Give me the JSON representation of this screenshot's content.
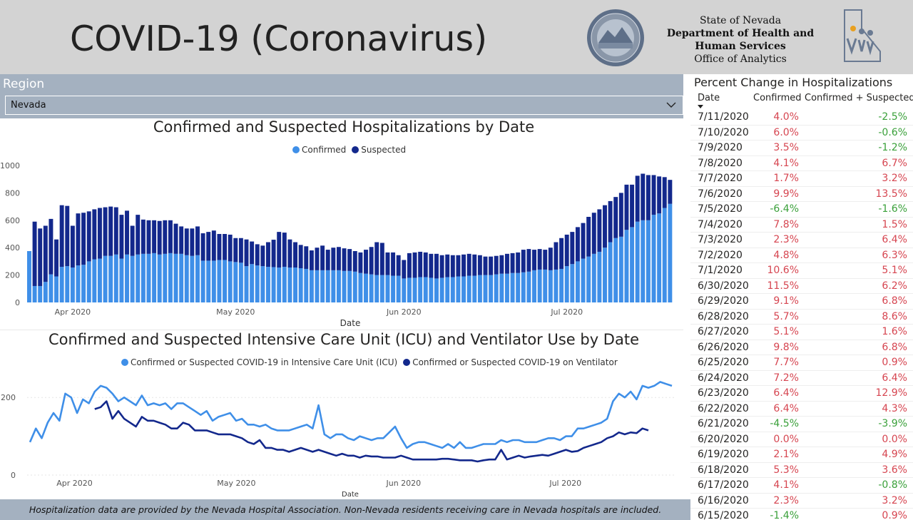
{
  "header": {
    "title": "COVID-19 (Coronavirus)",
    "agency_line1": "State of Nevada",
    "agency_line2": "Department of Health and",
    "agency_line3": "Human Services",
    "agency_line4": "Office of Analytics",
    "seal_icon": "nevada-state-seal-icon",
    "logo_icon": "dhhs-logo-icon"
  },
  "filter": {
    "label": "Region",
    "value": "Nevada"
  },
  "colors": {
    "confirmed": "#3f8fe8",
    "suspected": "#13288c",
    "positive_change": "#d64550",
    "negative_change": "#3aa03a",
    "panel": "#a4b1c0",
    "header": "#d3d3d3"
  },
  "hosp_chart": {
    "title": "Confirmed and Suspected Hospitalizations by Date",
    "legend_confirmed": "Confirmed",
    "legend_suspected": "Suspected",
    "xlabel": "Date",
    "y_ticks": [
      "0",
      "200",
      "400",
      "600",
      "800",
      "1000"
    ],
    "x_ticks": [
      "Apr 2020",
      "May 2020",
      "Jun 2020",
      "Jul 2020"
    ]
  },
  "icu_chart": {
    "title": "Confirmed and Suspected Intensive Care Unit (ICU) and Ventilator Use by Date",
    "legend_icu": "Confirmed or Suspected COVID-19 in Intensive Care Unit (ICU)",
    "legend_vent": "Confirmed or Suspected COVID-19 on Ventilator",
    "xlabel": "Date",
    "y_ticks": [
      "0",
      "200"
    ],
    "x_ticks": [
      "Apr 2020",
      "May 2020",
      "Jun 2020",
      "Jul 2020"
    ]
  },
  "chart_data": [
    {
      "type": "bar",
      "title": "Confirmed and Suspected Hospitalizations by Date",
      "xlabel": "Date",
      "ylabel": "",
      "ylim": [
        0,
        1000
      ],
      "stacked": true,
      "start_date": "2020-03-24",
      "x_tick_labels": [
        "Apr 2020",
        "May 2020",
        "Jun 2020",
        "Jul 2020"
      ],
      "series": [
        {
          "name": "Confirmed",
          "values": [
            375,
            120,
            120,
            150,
            205,
            190,
            260,
            265,
            255,
            270,
            275,
            300,
            315,
            320,
            340,
            340,
            350,
            320,
            350,
            340,
            350,
            355,
            355,
            360,
            350,
            355,
            360,
            355,
            355,
            345,
            340,
            345,
            305,
            305,
            305,
            310,
            310,
            300,
            295,
            290,
            265,
            280,
            270,
            265,
            260,
            258,
            255,
            260,
            255,
            255,
            250,
            245,
            235,
            235,
            235,
            235,
            235,
            235,
            230,
            230,
            225,
            215,
            210,
            205,
            200,
            200,
            200,
            195,
            195,
            175,
            180,
            180,
            185,
            185,
            180,
            175,
            180,
            185,
            185,
            190,
            190,
            195,
            195,
            200,
            200,
            200,
            205,
            210,
            210,
            215,
            215,
            220,
            225,
            235,
            240,
            240,
            235,
            240,
            245,
            265,
            280,
            300,
            320,
            335,
            355,
            370,
            400,
            440,
            470,
            480,
            530,
            550,
            590,
            600,
            600,
            640,
            650,
            690,
            720
          ]
        },
        {
          "name": "Suspected",
          "values": [
            0,
            470,
            420,
            410,
            405,
            270,
            450,
            440,
            305,
            380,
            380,
            365,
            365,
            370,
            355,
            360,
            345,
            320,
            320,
            220,
            290,
            250,
            245,
            240,
            245,
            245,
            240,
            220,
            200,
            195,
            200,
            210,
            200,
            210,
            220,
            190,
            190,
            195,
            175,
            180,
            195,
            165,
            155,
            150,
            180,
            200,
            260,
            250,
            205,
            185,
            170,
            165,
            145,
            165,
            180,
            150,
            165,
            170,
            165,
            160,
            150,
            150,
            175,
            200,
            240,
            235,
            165,
            170,
            150,
            135,
            180,
            185,
            185,
            180,
            175,
            180,
            165,
            165,
            160,
            155,
            160,
            160,
            155,
            145,
            135,
            135,
            135,
            135,
            145,
            145,
            150,
            165,
            165,
            150,
            150,
            145,
            165,
            200,
            225,
            230,
            235,
            250,
            260,
            290,
            300,
            310,
            310,
            300,
            300,
            320,
            330,
            310,
            335,
            340,
            330,
            290,
            270,
            225,
            175
          ]
        }
      ]
    },
    {
      "type": "line",
      "title": "Confirmed and Suspected Intensive Care Unit (ICU) and Ventilator Use by Date",
      "xlabel": "Date",
      "ylabel": "",
      "ylim": [
        0,
        250
      ],
      "start_date": "2020-03-24",
      "x_tick_labels": [
        "Apr 2020",
        "May 2020",
        "Jun 2020",
        "Jul 2020"
      ],
      "series": [
        {
          "name": "Confirmed or Suspected COVID-19 in Intensive Care Unit (ICU)",
          "values": [
            85,
            120,
            95,
            135,
            160,
            140,
            210,
            200,
            160,
            195,
            185,
            215,
            230,
            225,
            210,
            190,
            200,
            190,
            180,
            205,
            180,
            185,
            180,
            185,
            170,
            185,
            185,
            175,
            165,
            155,
            165,
            140,
            150,
            155,
            160,
            140,
            145,
            130,
            130,
            125,
            130,
            120,
            115,
            115,
            115,
            120,
            125,
            130,
            120,
            180,
            105,
            95,
            105,
            105,
            95,
            90,
            100,
            95,
            90,
            95,
            95,
            110,
            125,
            95,
            70,
            80,
            85,
            85,
            80,
            75,
            70,
            80,
            70,
            85,
            70,
            70,
            75,
            80,
            80,
            80,
            90,
            85,
            90,
            90,
            85,
            85,
            85,
            90,
            95,
            95,
            90,
            100,
            100,
            120,
            120,
            125,
            130,
            135,
            145,
            190,
            210,
            200,
            215,
            195,
            230,
            225,
            230,
            240,
            235,
            230
          ]
        },
        {
          "name": "Confirmed or Suspected COVID-19 on Ventilator",
          "values": [
            null,
            null,
            null,
            null,
            null,
            null,
            null,
            null,
            null,
            null,
            null,
            170,
            175,
            190,
            145,
            165,
            145,
            135,
            125,
            150,
            140,
            140,
            135,
            130,
            120,
            120,
            135,
            130,
            115,
            115,
            115,
            110,
            105,
            105,
            105,
            100,
            95,
            85,
            80,
            90,
            70,
            70,
            65,
            65,
            60,
            65,
            70,
            65,
            60,
            65,
            60,
            55,
            50,
            55,
            50,
            50,
            45,
            50,
            48,
            48,
            45,
            45,
            45,
            50,
            45,
            40,
            40,
            40,
            40,
            40,
            42,
            42,
            40,
            38,
            38,
            38,
            35,
            38,
            40,
            40,
            65,
            40,
            45,
            50,
            45,
            48,
            50,
            52,
            50,
            55,
            60,
            65,
            60,
            62,
            70,
            75,
            80,
            85,
            95,
            100,
            110,
            105,
            110,
            108,
            120,
            115
          ]
        }
      ]
    }
  ],
  "table": {
    "title": "Percent Change in Hospitalizations",
    "col_date": "Date",
    "col_confirmed": "Confirmed",
    "col_cs": "Confirmed + Suspected",
    "rows": [
      {
        "date": "7/11/2020",
        "confirmed": "4.0%",
        "cs": "-2.5%"
      },
      {
        "date": "7/10/2020",
        "confirmed": "6.0%",
        "cs": "-0.6%"
      },
      {
        "date": "7/9/2020",
        "confirmed": "3.5%",
        "cs": "-1.2%"
      },
      {
        "date": "7/8/2020",
        "confirmed": "4.1%",
        "cs": "6.7%"
      },
      {
        "date": "7/7/2020",
        "confirmed": "1.7%",
        "cs": "3.2%"
      },
      {
        "date": "7/6/2020",
        "confirmed": "9.9%",
        "cs": "13.5%"
      },
      {
        "date": "7/5/2020",
        "confirmed": "-6.4%",
        "cs": "-1.6%"
      },
      {
        "date": "7/4/2020",
        "confirmed": "7.8%",
        "cs": "1.5%"
      },
      {
        "date": "7/3/2020",
        "confirmed": "2.3%",
        "cs": "6.4%"
      },
      {
        "date": "7/2/2020",
        "confirmed": "4.8%",
        "cs": "6.3%"
      },
      {
        "date": "7/1/2020",
        "confirmed": "10.6%",
        "cs": "5.1%"
      },
      {
        "date": "6/30/2020",
        "confirmed": "11.5%",
        "cs": "6.2%"
      },
      {
        "date": "6/29/2020",
        "confirmed": "9.1%",
        "cs": "6.8%"
      },
      {
        "date": "6/28/2020",
        "confirmed": "5.7%",
        "cs": "8.6%"
      },
      {
        "date": "6/27/2020",
        "confirmed": "5.1%",
        "cs": "1.6%"
      },
      {
        "date": "6/26/2020",
        "confirmed": "9.8%",
        "cs": "6.8%"
      },
      {
        "date": "6/25/2020",
        "confirmed": "7.7%",
        "cs": "0.9%"
      },
      {
        "date": "6/24/2020",
        "confirmed": "7.2%",
        "cs": "6.4%"
      },
      {
        "date": "6/23/2020",
        "confirmed": "6.4%",
        "cs": "12.9%"
      },
      {
        "date": "6/22/2020",
        "confirmed": "6.4%",
        "cs": "4.3%"
      },
      {
        "date": "6/21/2020",
        "confirmed": "-4.5%",
        "cs": "-3.9%"
      },
      {
        "date": "6/20/2020",
        "confirmed": "0.0%",
        "cs": "0.0%"
      },
      {
        "date": "6/19/2020",
        "confirmed": "2.1%",
        "cs": "4.9%"
      },
      {
        "date": "6/18/2020",
        "confirmed": "5.3%",
        "cs": "3.6%"
      },
      {
        "date": "6/17/2020",
        "confirmed": "4.1%",
        "cs": "-0.8%"
      },
      {
        "date": "6/16/2020",
        "confirmed": "2.3%",
        "cs": "3.2%"
      },
      {
        "date": "6/15/2020",
        "confirmed": "-1.4%",
        "cs": "0.9%"
      }
    ]
  },
  "footnote": "Hospitalization data are provided by the Nevada Hospital Association.  Non-Nevada residents receiving care in Nevada hospitals are included."
}
